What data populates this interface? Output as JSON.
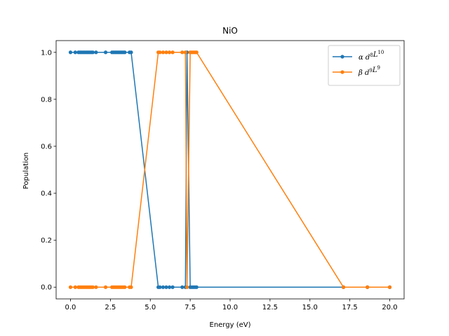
{
  "chart_data": {
    "type": "line",
    "title": "NiO",
    "xlabel": "Energy (eV)",
    "ylabel": "Population",
    "xlim": [
      -0.9,
      20.9
    ],
    "ylim": [
      -0.05,
      1.05
    ],
    "xticks": [
      0.0,
      2.5,
      5.0,
      7.5,
      10.0,
      12.5,
      15.0,
      17.5,
      20.0
    ],
    "xtick_labels": [
      "0.0",
      "2.5",
      "5.0",
      "7.5",
      "10.0",
      "12.5",
      "15.0",
      "17.5",
      "20.0"
    ],
    "yticks": [
      0.0,
      0.2,
      0.4,
      0.6,
      0.8,
      1.0
    ],
    "ytick_labels": [
      "0.0",
      "0.2",
      "0.4",
      "0.6",
      "0.8",
      "1.0"
    ],
    "grid": false,
    "legend_position": "top-right",
    "series": [
      {
        "name_prefix": "α d",
        "name_sup1": "8",
        "name_mid": "L",
        "name_sup2": "10",
        "color": "#1f77b4",
        "x": [
          0.0,
          0.3,
          0.5,
          0.6,
          0.7,
          0.8,
          0.9,
          1.0,
          1.1,
          1.2,
          1.3,
          1.4,
          1.6,
          2.2,
          2.6,
          2.7,
          2.8,
          2.9,
          3.0,
          3.1,
          3.2,
          3.3,
          3.4,
          3.7,
          3.8,
          5.5,
          5.6,
          5.8,
          6.0,
          6.2,
          6.4,
          7.0,
          7.2,
          7.3,
          7.5,
          7.6,
          7.7,
          7.8,
          7.9,
          17.1,
          18.6,
          20.0
        ],
        "y": [
          1,
          1,
          1,
          1,
          1,
          1,
          1,
          1,
          1,
          1,
          1,
          1,
          1,
          1,
          1,
          1,
          1,
          1,
          1,
          1,
          1,
          1,
          1,
          1,
          1,
          0,
          0,
          0,
          0,
          0,
          0,
          0,
          0,
          1,
          0,
          0,
          0,
          0,
          0,
          0,
          0,
          0
        ]
      },
      {
        "name_prefix": "β d",
        "name_sup1": "9",
        "name_mid": "L",
        "name_sup2": "9",
        "color": "#ff7f0e",
        "x": [
          0.0,
          0.3,
          0.5,
          0.6,
          0.7,
          0.8,
          0.9,
          1.0,
          1.1,
          1.2,
          1.3,
          1.4,
          1.6,
          2.2,
          2.6,
          2.7,
          2.8,
          2.9,
          3.0,
          3.1,
          3.2,
          3.3,
          3.4,
          3.7,
          3.8,
          5.5,
          5.6,
          5.8,
          6.0,
          6.2,
          6.4,
          7.0,
          7.2,
          7.3,
          7.5,
          7.6,
          7.7,
          7.8,
          7.9,
          17.1,
          18.6,
          20.0
        ],
        "y": [
          0,
          0,
          0,
          0,
          0,
          0,
          0,
          0,
          0,
          0,
          0,
          0,
          0,
          0,
          0,
          0,
          0,
          0,
          0,
          0,
          0,
          0,
          0,
          0,
          0,
          1,
          1,
          1,
          1,
          1,
          1,
          1,
          1,
          0,
          1,
          1,
          1,
          1,
          1,
          0,
          0,
          0
        ]
      }
    ]
  }
}
